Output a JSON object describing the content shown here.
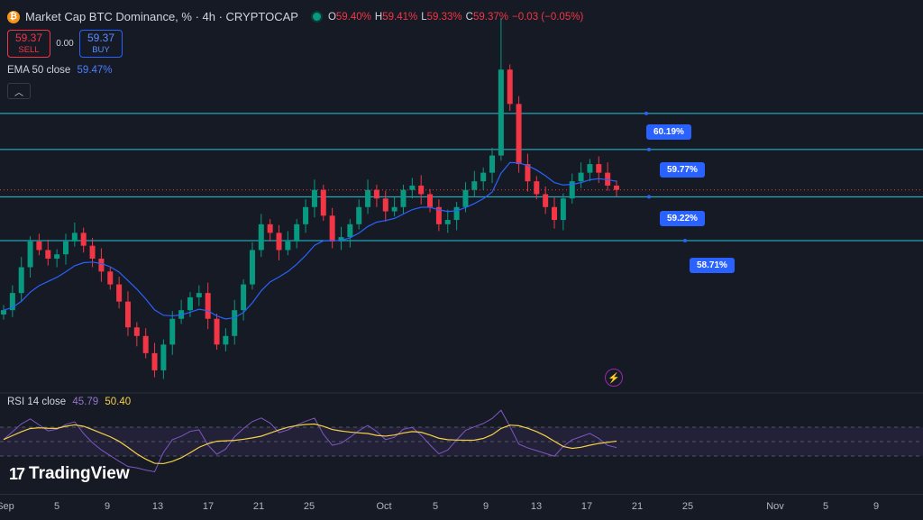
{
  "header": {
    "symbol_icon": "bitcoin-icon",
    "title": "Market Cap BTC Dominance, % · 4h · CRYPTOCAP",
    "ohlc": {
      "o_label": "O",
      "o_value": "59.40%",
      "h_label": "H",
      "h_value": "59.41%",
      "l_label": "L",
      "l_value": "59.33%",
      "c_label": "C",
      "c_value": "59.37%",
      "change": "−0.03 (−0.05%)"
    }
  },
  "trade": {
    "sell_price": "59.37",
    "sell_label": "SELL",
    "spread": "0.00",
    "buy_price": "59.37",
    "buy_label": "BUY"
  },
  "indicators": {
    "ema_label": "EMA 50 close",
    "ema_value": "59.47%",
    "rsi_label": "RSI 14 close",
    "rsi_value": "45.79",
    "rsi_ma_value": "50.40"
  },
  "price_lines": [
    {
      "label": "60.19%",
      "value": 60.19
    },
    {
      "label": "59.77%",
      "value": 59.77
    },
    {
      "label": "59.22%",
      "value": 59.22
    },
    {
      "label": "58.71%",
      "value": 58.71
    }
  ],
  "xaxis": {
    "labels": [
      "Sep",
      "5",
      "9",
      "13",
      "17",
      "21",
      "25",
      "Oct",
      "5",
      "9",
      "13",
      "17",
      "21",
      "25",
      "Nov",
      "5",
      "9"
    ]
  },
  "branding": {
    "logo_text": "TradingView",
    "logo_mark": "17"
  },
  "chart_data": {
    "type": "candlestick",
    "interval": "4h",
    "price_ylim": [
      57.0,
      61.3
    ],
    "candle_closes": [
      57.9,
      58.1,
      58.4,
      58.7,
      58.6,
      58.5,
      58.55,
      58.7,
      58.8,
      58.65,
      58.5,
      58.35,
      58.2,
      58.0,
      57.7,
      57.6,
      57.4,
      57.2,
      57.5,
      57.8,
      57.9,
      58.05,
      58.1,
      57.8,
      57.5,
      57.6,
      57.9,
      58.2,
      58.6,
      58.9,
      58.8,
      58.6,
      58.7,
      58.9,
      59.1,
      59.3,
      59.0,
      58.7,
      58.75,
      58.9,
      59.1,
      59.3,
      59.2,
      59.05,
      59.1,
      59.3,
      59.35,
      59.25,
      59.1,
      58.9,
      58.95,
      59.1,
      59.3,
      59.4,
      59.5,
      59.7,
      60.7,
      60.3,
      59.6,
      59.4,
      59.25,
      59.1,
      58.95,
      59.2,
      59.4,
      59.5,
      59.6,
      59.5,
      59.35,
      59.3
    ],
    "ema50_ylim": [
      57.0,
      61.3
    ],
    "rsi_ylim": [
      0,
      100
    ],
    "rsi_band": [
      30,
      70
    ]
  },
  "colors": {
    "up": "#089981",
    "down": "#f23645",
    "ema": "#2962ff",
    "rsi": "#7e57c2",
    "rsi_ma": "#f5d145",
    "hline": "#26c6da",
    "bg": "#161a25"
  }
}
